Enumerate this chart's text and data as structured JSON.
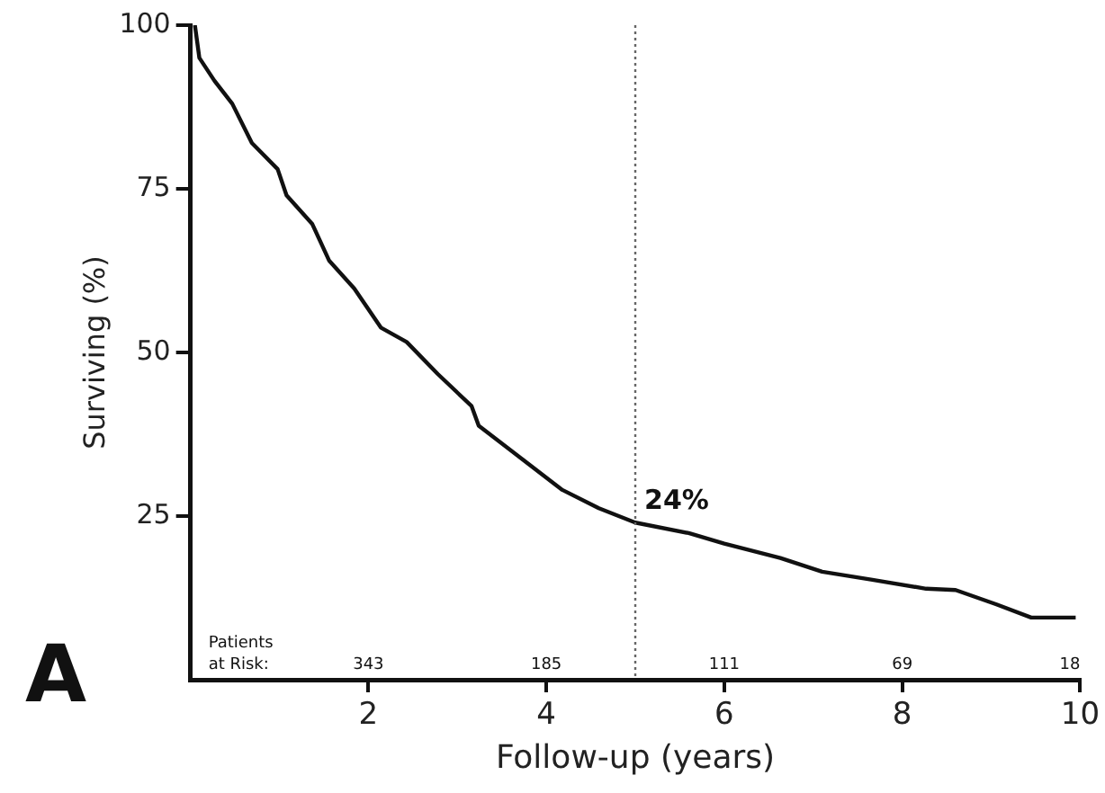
{
  "chart_data": {
    "type": "line",
    "xlabel": "Follow-up (years)",
    "ylabel": "Surviving (%)",
    "x": [
      0.05,
      0.1,
      0.27,
      0.47,
      0.69,
      0.98,
      1.08,
      1.37,
      1.56,
      1.84,
      2.14,
      2.43,
      2.78,
      3.16,
      3.24,
      3.71,
      4.18,
      4.59,
      5.0,
      5.6,
      6.0,
      6.63,
      7.1,
      7.65,
      8.27,
      8.6,
      9.06,
      9.45,
      9.76,
      9.95
    ],
    "series": [
      {
        "color": "#111111",
        "values": [
          100,
          95,
          91.5,
          88,
          82,
          78,
          74,
          69.6,
          64,
          59.8,
          53.8,
          51.6,
          46.7,
          41.8,
          38.8,
          33.9,
          29,
          26.2,
          24,
          22.4,
          20.8,
          18.6,
          16.5,
          15.3,
          13.9,
          13.7,
          11.5,
          9.5,
          9.5,
          9.5
        ]
      }
    ],
    "xlim": [
      0,
      10
    ],
    "xticks": [
      2,
      4,
      6,
      8,
      10
    ],
    "ylim": [
      0,
      100
    ],
    "yticks": [
      25,
      50,
      75,
      100
    ],
    "grid": false,
    "legend": false,
    "marker": "none",
    "line_style": "solid",
    "ref_lines": [
      {
        "axis": "x",
        "value": 5,
        "line_style": "dotted",
        "color": "#666666"
      }
    ],
    "annotations": [
      "A",
      "Patients at Risk:",
      {
        "text": "24%",
        "x": 5,
        "y": 24
      },
      "343",
      "185",
      "111",
      "69",
      "18"
    ]
  }
}
